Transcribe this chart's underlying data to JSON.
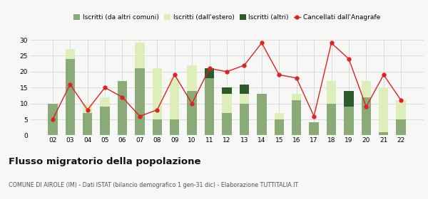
{
  "years": [
    "02",
    "03",
    "04",
    "05",
    "06",
    "07",
    "08",
    "09",
    "10",
    "11",
    "12",
    "13",
    "14",
    "15",
    "16",
    "17",
    "18",
    "19",
    "20",
    "21",
    "22"
  ],
  "iscritti_altri_comuni": [
    10,
    24,
    7,
    9,
    17,
    21,
    5,
    5,
    14,
    18,
    7,
    10,
    13,
    5,
    11,
    4,
    10,
    9,
    12,
    1,
    5
  ],
  "iscritti_estero": [
    0,
    3,
    3,
    3,
    0,
    8,
    16,
    13,
    8,
    0,
    6,
    3,
    0,
    2,
    2,
    0,
    7,
    0,
    5,
    14,
    6
  ],
  "iscritti_altri": [
    0,
    0,
    0,
    0,
    0,
    0,
    0,
    0,
    0,
    3,
    2,
    3,
    0,
    0,
    0,
    0,
    0,
    5,
    0,
    0,
    0
  ],
  "cancellati": [
    5,
    16,
    8,
    15,
    12,
    6,
    8,
    19,
    10,
    21,
    20,
    22,
    29,
    19,
    18,
    6,
    29,
    24,
    9,
    19,
    11
  ],
  "color_altri_comuni": "#8aaa78",
  "color_estero": "#ddeebb",
  "color_altri": "#2d5a2d",
  "color_cancellati": "#dd2222",
  "title": "Flusso migratorio della popolazione",
  "subtitle": "COMUNE DI AIROLE (IM) - Dati ISTAT (bilancio demografico 1 gen-31 dic) - Elaborazione TUTTITALIA.IT",
  "legend_labels": [
    "Iscritti (da altri comuni)",
    "Iscritti (dall'estero)",
    "Iscritti (altri)",
    "Cancellati dall'Anagrafe"
  ],
  "ylim": [
    0,
    30
  ],
  "yticks": [
    0,
    5,
    10,
    15,
    20,
    25,
    30
  ],
  "background_color": "#f7f7f5"
}
